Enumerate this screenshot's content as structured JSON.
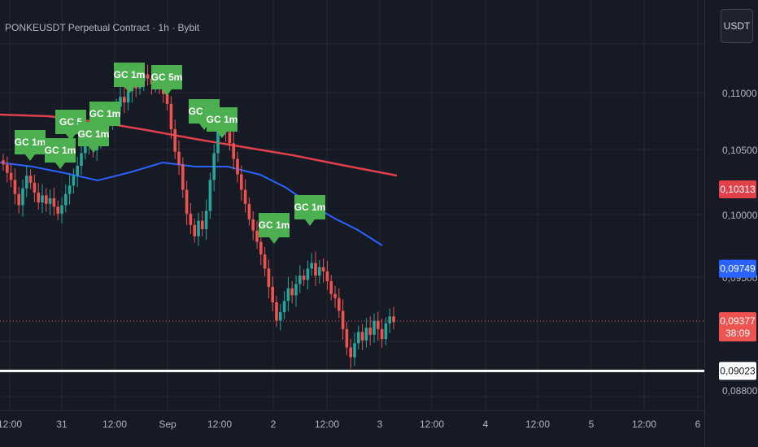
{
  "header": {
    "title": "PONKEUSDT Perpetual Contract · 1h · Bybit",
    "currency_button": "USDT"
  },
  "colors": {
    "background": "#161a25",
    "up": "#26a69a",
    "down": "#ef5350",
    "ma_fast": "#2962ff",
    "ma_slow": "#e0404a",
    "signal_label": "#4caf50",
    "hline": "#ffffff"
  },
  "chart_data": {
    "type": "candlestick",
    "symbol": "PONKEUSDT",
    "interval": "1h",
    "exchange": "Bybit",
    "y_axis_ticks": [
      "0,11000",
      "0,10500",
      "0,10000",
      "0,09500",
      "0,08800"
    ],
    "x_axis_ticks": [
      "12:00",
      "31",
      "12:00",
      "Sep",
      "12:00",
      "2",
      "12:00",
      "3",
      "12:00",
      "4",
      "12:00",
      "5",
      "12:00",
      "6"
    ],
    "price_badges": [
      {
        "label": "0,10313",
        "series": "slow moving average"
      },
      {
        "label": "0,09749",
        "series": "fast moving average"
      },
      {
        "label": "0,09377",
        "sub": "38:09",
        "series": "last price"
      },
      {
        "label": "0,09023",
        "series": "horizontal line"
      }
    ],
    "signal_labels": [
      "GC 1m",
      "GC 1m",
      "GC 5",
      "GC 1m",
      "GC 1m",
      "GC 1m",
      "GC 5m",
      "GC 1m",
      "GC 1m",
      "GC 1m",
      "GC 1m"
    ],
    "horizontal_line": 0.09023,
    "last_price": 0.09377,
    "candles_close": [
      0.1049,
      0.1043,
      0.1038,
      0.1028,
      0.102,
      0.1032,
      0.1041,
      0.1036,
      0.1029,
      0.1022,
      0.1027,
      0.1021,
      0.1025,
      0.1019,
      0.1014,
      0.102,
      0.1028,
      0.1034,
      0.1041,
      0.1048,
      0.1057,
      0.1063,
      0.107,
      0.1059,
      0.1066,
      0.1073,
      0.1081,
      0.1078,
      0.1084,
      0.109,
      0.1097,
      0.1093,
      0.1101,
      0.1107,
      0.1103,
      0.1108,
      0.1113,
      0.111,
      0.1106,
      0.1112,
      0.1107,
      0.1099,
      0.1092,
      0.1074,
      0.1058,
      0.1049,
      0.1031,
      0.1014,
      0.1006,
      0.0998,
      0.1009,
      0.1003,
      0.1016,
      0.1038,
      0.1057,
      0.1075,
      0.1081,
      0.1072,
      0.1064,
      0.1053,
      0.1042,
      0.1031,
      0.1021,
      0.101,
      0.1002,
      0.0994,
      0.0985,
      0.0975,
      0.0962,
      0.0951,
      0.0938,
      0.0944,
      0.0952,
      0.0961,
      0.0956,
      0.0964,
      0.097,
      0.0967,
      0.0975,
      0.0979,
      0.097,
      0.0976,
      0.0973,
      0.0966,
      0.0957,
      0.0954,
      0.0945,
      0.0932,
      0.0919,
      0.0912,
      0.0922,
      0.093,
      0.0924,
      0.0933,
      0.0928,
      0.0938,
      0.0932,
      0.0925,
      0.0936,
      0.0941,
      0.0937
    ]
  }
}
